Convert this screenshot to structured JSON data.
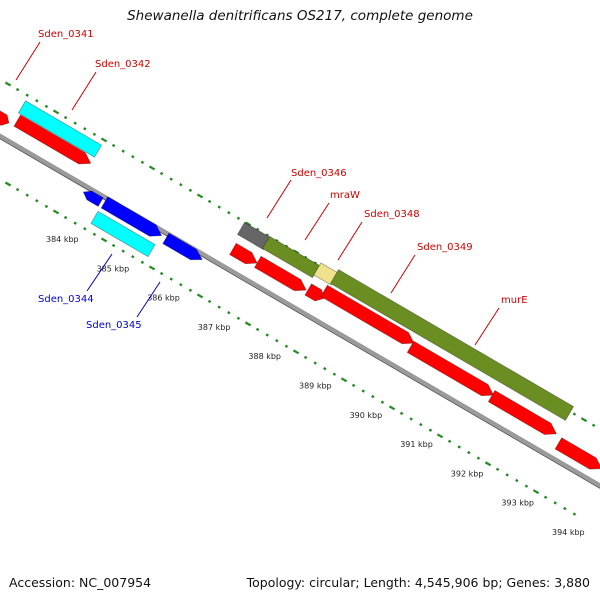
{
  "title": "Shewanella denitrificans OS217, complete genome",
  "footer": {
    "accession": "Accession: NC_007954",
    "summary": "Topology: circular; Length: 4,545,906 bp; Genes: 3,880"
  },
  "colors": {
    "red": "#ff0000",
    "cyan": "#00ffff",
    "blue": "#0000ff",
    "olive": "#6b8e23",
    "grey": "#666666",
    "tan": "#f0e28c",
    "backbone": "#9a9a9a",
    "tick": "#228b22",
    "label_red": "#cc0000",
    "label_blue": "#0000cc"
  },
  "scale_labels": [
    "384 kbp",
    "385 kbp",
    "386 kbp",
    "387 kbp",
    "388 kbp",
    "389 kbp",
    "390 kbp",
    "391 kbp",
    "392 kbp",
    "393 kbp",
    "394 kbp"
  ],
  "gene_labels": [
    {
      "text": "Sden_0341",
      "color": "label_red"
    },
    {
      "text": "Sden_0342",
      "color": "label_red"
    },
    {
      "text": "Sden_0346",
      "color": "label_red"
    },
    {
      "text": "mraW",
      "color": "label_red"
    },
    {
      "text": "Sden_0348",
      "color": "label_red"
    },
    {
      "text": "Sden_0349",
      "color": "label_red"
    },
    {
      "text": "murE",
      "color": "label_red"
    },
    {
      "text": "Sden_0344",
      "color": "label_blue"
    },
    {
      "text": "Sden_0345",
      "color": "label_blue"
    }
  ]
}
